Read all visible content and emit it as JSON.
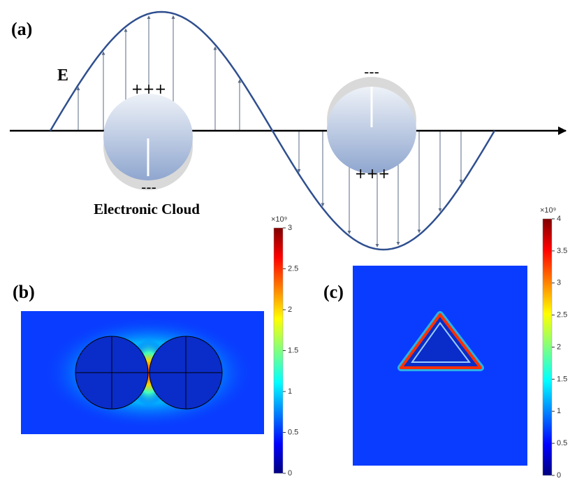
{
  "panel_a": {
    "label": "(a)",
    "field_label": "E",
    "left_top_charge": "+++",
    "left_bottom_charge": "---",
    "right_top_charge": "---",
    "right_bottom_charge": "+++",
    "caption": "Electronic Cloud"
  },
  "panel_b": {
    "label": "(b)",
    "colorbar": {
      "multiplier": "×10⁹",
      "lim": [
        0,
        3
      ],
      "ticks": [
        0,
        0.5,
        1,
        1.5,
        2,
        2.5,
        3
      ]
    }
  },
  "panel_c": {
    "label": "(c)",
    "colorbar": {
      "multiplier": "×10⁹",
      "lim": [
        0,
        4
      ],
      "ticks": [
        0,
        0.5,
        1,
        1.5,
        2,
        2.5,
        3,
        3.5,
        4
      ]
    }
  }
}
